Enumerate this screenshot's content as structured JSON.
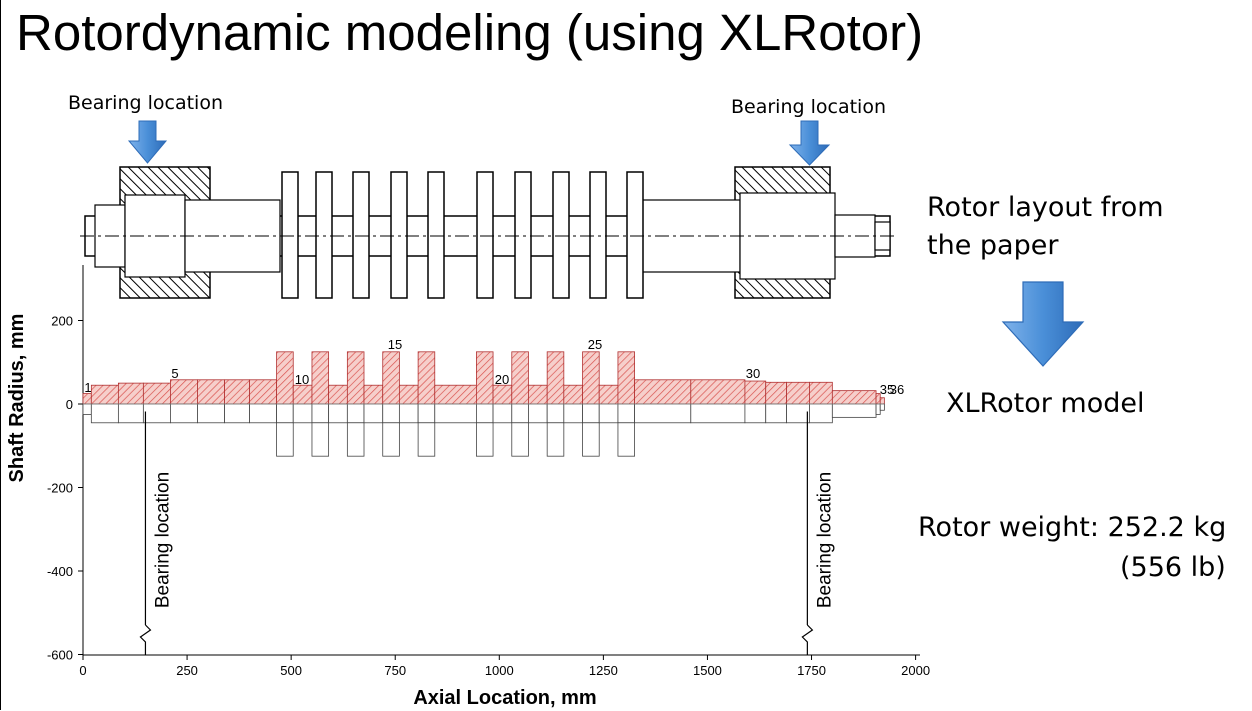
{
  "title": "Rotordynamic modeling (using XLRotor)",
  "top_labels": {
    "left": "Bearing location",
    "right": "Bearing location"
  },
  "side_text": {
    "layout_line1": "Rotor layout from",
    "layout_line2": "the paper",
    "model": "XLRotor model",
    "weight_line1": "Rotor weight: 252.2 kg",
    "weight_line2": "(556 lb)"
  },
  "colors": {
    "arrow": "#4a8fd8",
    "arrow_dark": "#2e6cb8",
    "hatch": "#d9534f",
    "fill": "#f6cfcb"
  },
  "chart_data": {
    "type": "rotor-model",
    "xlabel": "Axial Location, mm",
    "ylabel": "Shaft Radius, mm",
    "xlim": [
      0,
      2000
    ],
    "ylim": [
      -600,
      300
    ],
    "x_ticks": [
      "0",
      "250",
      "500",
      "750",
      "1000",
      "1250",
      "1500",
      "1750",
      "2000"
    ],
    "y_ticks": [
      "200",
      "0",
      "-200",
      "-400",
      "-600"
    ],
    "bearings": [
      {
        "x": 150,
        "label": "Bearing location"
      },
      {
        "x": 1740,
        "label": "Bearing location"
      }
    ],
    "node_labels": [
      "1",
      "5",
      "10",
      "15",
      "20",
      "25",
      "30",
      "35",
      "36"
    ],
    "segments": [
      {
        "x0": 0,
        "x1": 20,
        "r": 25
      },
      {
        "x0": 20,
        "x1": 85,
        "r": 45
      },
      {
        "x0": 85,
        "x1": 145,
        "r": 50
      },
      {
        "x0": 145,
        "x1": 210,
        "r": 50
      },
      {
        "x0": 210,
        "x1": 275,
        "r": 58
      },
      {
        "x0": 275,
        "x1": 340,
        "r": 58
      },
      {
        "x0": 340,
        "x1": 400,
        "r": 58
      },
      {
        "x0": 400,
        "x1": 465,
        "r": 58
      },
      {
        "x0": 465,
        "x1": 505,
        "r": 125
      },
      {
        "x0": 505,
        "x1": 550,
        "r": 45
      },
      {
        "x0": 550,
        "x1": 590,
        "r": 125
      },
      {
        "x0": 590,
        "x1": 635,
        "r": 45
      },
      {
        "x0": 635,
        "x1": 675,
        "r": 125
      },
      {
        "x0": 675,
        "x1": 720,
        "r": 45
      },
      {
        "x0": 720,
        "x1": 760,
        "r": 125
      },
      {
        "x0": 760,
        "x1": 805,
        "r": 45
      },
      {
        "x0": 805,
        "x1": 845,
        "r": 125
      },
      {
        "x0": 845,
        "x1": 945,
        "r": 45
      },
      {
        "x0": 945,
        "x1": 985,
        "r": 125
      },
      {
        "x0": 985,
        "x1": 1030,
        "r": 45
      },
      {
        "x0": 1030,
        "x1": 1070,
        "r": 125
      },
      {
        "x0": 1070,
        "x1": 1115,
        "r": 45
      },
      {
        "x0": 1115,
        "x1": 1155,
        "r": 125
      },
      {
        "x0": 1155,
        "x1": 1200,
        "r": 45
      },
      {
        "x0": 1200,
        "x1": 1240,
        "r": 125
      },
      {
        "x0": 1240,
        "x1": 1285,
        "r": 45
      },
      {
        "x0": 1285,
        "x1": 1325,
        "r": 125
      },
      {
        "x0": 1325,
        "x1": 1460,
        "r": 58
      },
      {
        "x0": 1460,
        "x1": 1590,
        "r": 58
      },
      {
        "x0": 1590,
        "x1": 1640,
        "r": 55
      },
      {
        "x0": 1640,
        "x1": 1690,
        "r": 52
      },
      {
        "x0": 1690,
        "x1": 1745,
        "r": 52
      },
      {
        "x0": 1745,
        "x1": 1800,
        "r": 52
      },
      {
        "x0": 1800,
        "x1": 1905,
        "r": 32
      },
      {
        "x0": 1905,
        "x1": 1915,
        "r": 25
      },
      {
        "x0": 1915,
        "x1": 1925,
        "r": 15
      }
    ]
  }
}
